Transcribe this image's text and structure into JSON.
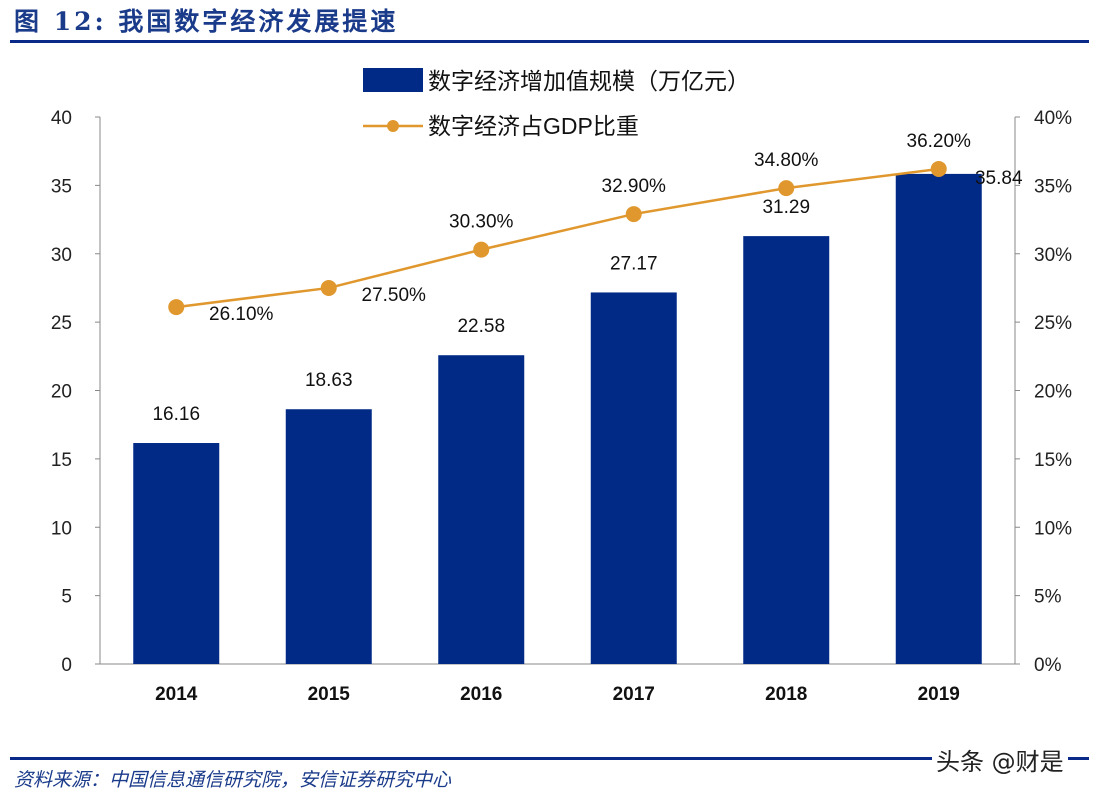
{
  "header": {
    "title": "图 12:  我国数字经济发展提速"
  },
  "footer": {
    "source": "资料来源：中国信息通信研究院，安信证券研究中心",
    "watermark": "头条 @财是"
  },
  "chart_data": {
    "type": "bar+line",
    "categories": [
      "2014",
      "2015",
      "2016",
      "2017",
      "2018",
      "2019"
    ],
    "series": [
      {
        "name": "数字经济增加值规模（万亿元）",
        "type": "bar",
        "axis": "left",
        "color": "#002a86",
        "values": [
          16.16,
          18.63,
          22.58,
          27.17,
          31.29,
          35.84
        ],
        "labels": [
          "16.16",
          "18.63",
          "22.58",
          "27.17",
          "31.29",
          "35.84"
        ]
      },
      {
        "name": "数字经济占GDP比重",
        "type": "line",
        "axis": "right",
        "color": "#e0982e",
        "values": [
          26.1,
          27.5,
          30.3,
          32.9,
          34.8,
          36.2
        ],
        "labels": [
          "26.10%",
          "27.50%",
          "30.30%",
          "32.90%",
          "34.80%",
          "36.20%"
        ]
      }
    ],
    "left_axis": {
      "ylim": [
        0,
        40
      ],
      "ticks": [
        "0",
        "5",
        "10",
        "15",
        "20",
        "25",
        "30",
        "35",
        "40"
      ]
    },
    "right_axis": {
      "ylim": [
        0,
        40
      ],
      "ticks": [
        "0%",
        "5%",
        "10%",
        "15%",
        "20%",
        "25%",
        "30%",
        "35%",
        "40%"
      ]
    },
    "legend": "top-center",
    "grid": false
  }
}
